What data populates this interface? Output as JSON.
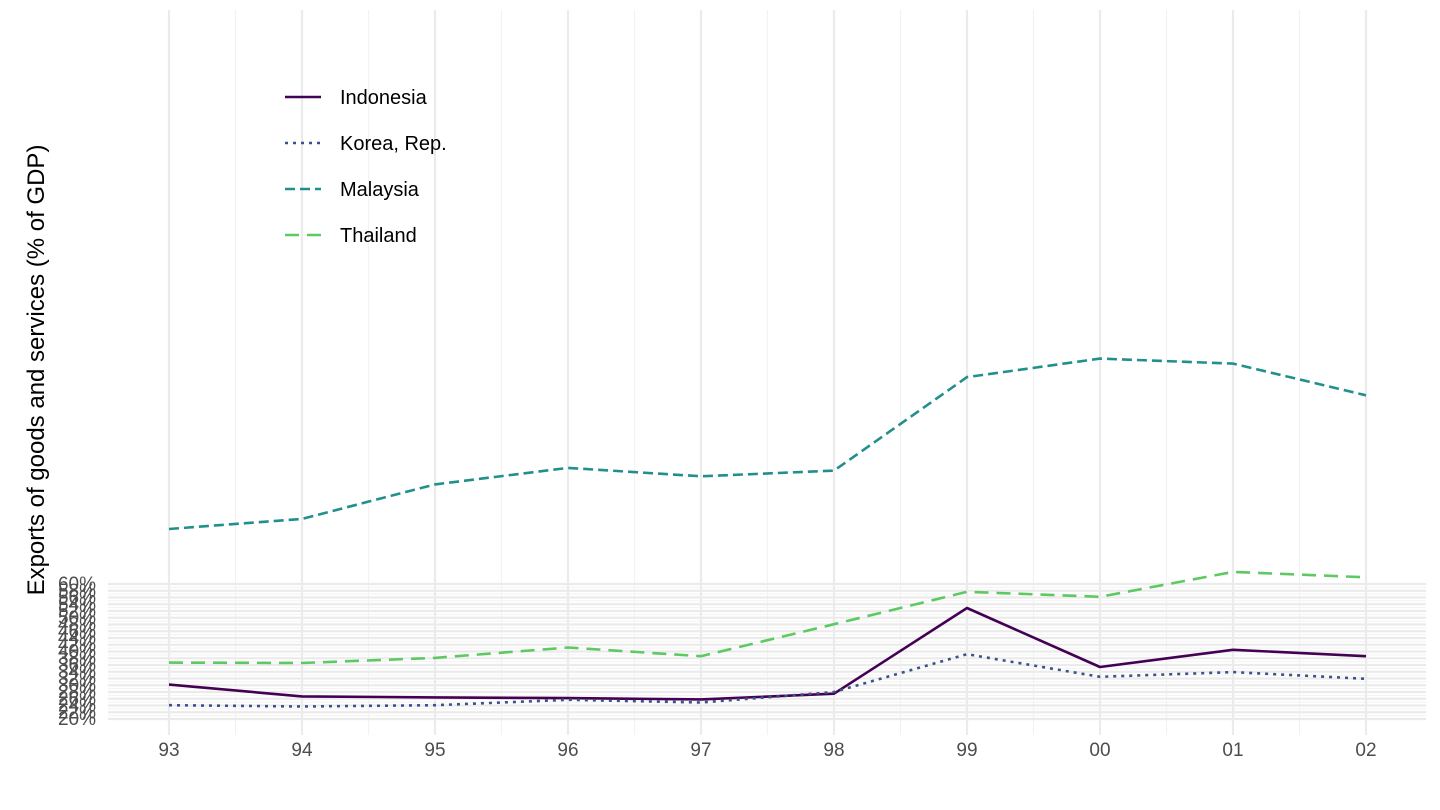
{
  "chart_data": {
    "type": "line",
    "title": "",
    "xlabel": "",
    "ylabel": "Exports of goods and services (% of GDP)",
    "categories": [
      "93",
      "94",
      "95",
      "96",
      "97",
      "98",
      "99",
      "00",
      "01",
      "02"
    ],
    "y_ticks": [
      "20%",
      "22%",
      "24%",
      "26%",
      "28%",
      "30%",
      "32%",
      "34%",
      "36%",
      "38%",
      "40%",
      "42%",
      "44%",
      "46%",
      "48%",
      "50%",
      "52%",
      "54%",
      "56%",
      "58%",
      "60%"
    ],
    "ylim": [
      20,
      60
    ],
    "grid": true,
    "legend_position": "top-left",
    "series": [
      {
        "name": "Indonesia",
        "color": "#440154",
        "dash": "solid",
        "values": [
          30.2,
          26.7,
          26.4,
          26.2,
          25.8,
          27.5,
          52.9,
          35.4,
          40.5,
          38.6
        ]
      },
      {
        "name": "Korea, Rep.",
        "color": "#3b528b",
        "dash": "dotted",
        "values": [
          24.1,
          23.7,
          24.1,
          25.7,
          24.9,
          28.0,
          39.2,
          32.5,
          33.9,
          31.9
        ]
      },
      {
        "name": "Malaysia",
        "color": "#21908c",
        "dash": "dashed",
        "values": [
          76.3,
          79.3,
          89.5,
          94.4,
          91.9,
          93.6,
          121.3,
          126.8,
          125.3,
          115.9
        ]
      },
      {
        "name": "Thailand",
        "color": "#5ec962",
        "dash": "longdash",
        "values": [
          36.7,
          36.6,
          38.1,
          41.2,
          38.6,
          48.1,
          57.7,
          56.2,
          63.6,
          62.0
        ]
      }
    ]
  }
}
